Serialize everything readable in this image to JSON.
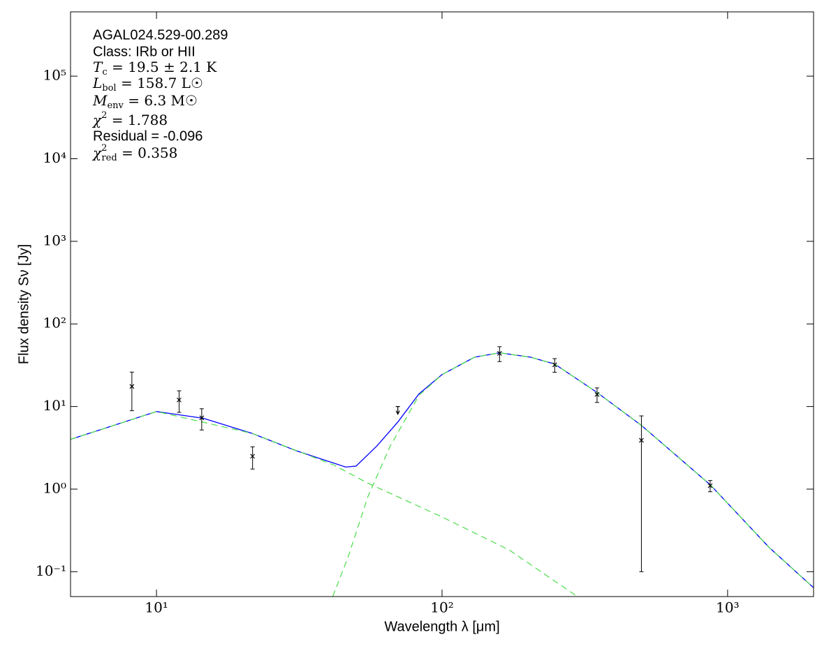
{
  "chart_data": {
    "type": "sed",
    "xlabel": "Wavelength λ [μm]",
    "ylabel": "Flux density Sν [Jy]",
    "xlog": true,
    "ylog": true,
    "grid": false,
    "xlim": [
      5,
      2000
    ],
    "ylim": [
      0.05,
      600000
    ],
    "xticks": [
      {
        "value": 10,
        "label": "10¹"
      },
      {
        "value": 100,
        "label": "10²"
      },
      {
        "value": 1000,
        "label": "10³"
      }
    ],
    "yticks": [
      {
        "value": 0.1,
        "label": "10⁻¹"
      },
      {
        "value": 1,
        "label": "10⁰"
      },
      {
        "value": 10,
        "label": "10¹"
      },
      {
        "value": 100,
        "label": "10²"
      },
      {
        "value": 1000,
        "label": "10³"
      },
      {
        "value": 10000,
        "label": "10⁴"
      },
      {
        "value": 100000,
        "label": "10⁵"
      }
    ],
    "annotations": [
      "AGAL024.529-00.289",
      "Class: IRb or HII",
      {
        "symbol": "T",
        "sub": "c",
        "rest": " = 19.5 ± 2.1 K"
      },
      {
        "symbol": "L",
        "sub": "bol",
        "rest": " = 158.7 L☉"
      },
      {
        "symbol": "M",
        "sub": "env",
        "rest": " = 6.3 M☉"
      },
      {
        "symbol": "χ",
        "sup": "2",
        "rest": " = 1.788"
      },
      "Residual = -0.096",
      {
        "symbol": "χ",
        "sup": "2",
        "sub": "red",
        "rest": " = 0.358"
      }
    ],
    "points": {
      "color": "#000000",
      "x": [
        8.2,
        12,
        14.4,
        21.7,
        159,
        248,
        349,
        499,
        869
      ],
      "values": [
        17.5,
        12,
        7.3,
        2.5,
        44,
        32,
        14,
        3.9,
        1.1
      ],
      "errors": [
        8.6,
        3.5,
        2.1,
        0.75,
        9,
        6,
        2.8,
        3.8,
        0.17
      ]
    },
    "upper_limits": {
      "color": "#000000",
      "x": [
        70
      ],
      "values": [
        10
      ]
    },
    "lines": [
      {
        "color": "#0000ff",
        "style": "solid",
        "x": [
          5,
          10,
          14.6,
          21.7,
          31,
          46,
          50,
          59,
          70,
          83,
          100,
          130,
          159,
          204,
          248,
          349,
          499,
          869,
          1397,
          2000
        ],
        "values": [
          4.0,
          8.7,
          7.2,
          4.7,
          2.9,
          1.85,
          1.9,
          3.3,
          6.5,
          14.2,
          24.4,
          39.6,
          44.7,
          39.6,
          32.7,
          14.8,
          5.9,
          1.13,
          0.197,
          0.064
        ]
      },
      {
        "color": "#55e055",
        "style": "dashed",
        "x": [
          41.4,
          46.8,
          55,
          65.8,
          83,
          100,
          130,
          159,
          204,
          248,
          349,
          499,
          869,
          1397,
          2000
        ],
        "values": [
          0.05,
          0.148,
          0.81,
          3.3,
          13.6,
          24.4,
          39.6,
          44.7,
          39.6,
          32.7,
          14.8,
          5.9,
          1.13,
          0.197,
          0.064
        ]
      },
      {
        "color": "#55e055",
        "style": "dashed",
        "x": [
          5,
          10,
          21.7,
          41.9,
          55,
          100,
          172,
          298
        ],
        "values": [
          4.0,
          8.7,
          4.7,
          1.95,
          1.18,
          0.46,
          0.183,
          0.05
        ]
      }
    ]
  }
}
